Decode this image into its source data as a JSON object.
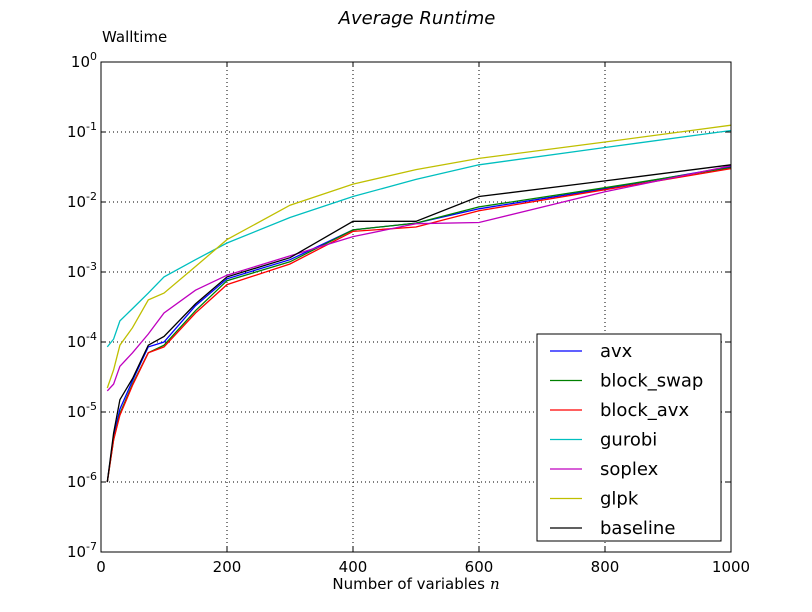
{
  "chart_data": {
    "type": "line",
    "title": "Average Runtime",
    "ylabel": "Walltime",
    "xlabel": "Number of variables",
    "xlabel_var": "n",
    "xlim": [
      0,
      1000
    ],
    "ylim": [
      1e-07,
      1
    ],
    "yscale": "log",
    "grid": true,
    "legend_position": "lower-right",
    "xticks": [
      {
        "value": 0,
        "label": "0"
      },
      {
        "value": 200,
        "label": "200"
      },
      {
        "value": 400,
        "label": "400"
      },
      {
        "value": 600,
        "label": "600"
      },
      {
        "value": 800,
        "label": "800"
      },
      {
        "value": 1000,
        "label": "1000"
      }
    ],
    "yticks": [
      {
        "value": 1e-07,
        "base": "10",
        "exp": "-7"
      },
      {
        "value": 1e-06,
        "base": "10",
        "exp": "-6"
      },
      {
        "value": 1e-05,
        "base": "10",
        "exp": "-5"
      },
      {
        "value": 0.0001,
        "base": "10",
        "exp": "-4"
      },
      {
        "value": 0.001,
        "base": "10",
        "exp": "-3"
      },
      {
        "value": 0.01,
        "base": "10",
        "exp": "-2"
      },
      {
        "value": 0.1,
        "base": "10",
        "exp": "-1"
      },
      {
        "value": 1,
        "base": "10",
        "exp": "0"
      }
    ],
    "series": [
      {
        "name": "avx",
        "color": "#0000ff",
        "x": [
          10,
          20,
          30,
          50,
          75,
          100,
          150,
          200,
          300,
          400,
          500,
          600,
          800,
          1000
        ],
        "y": [
          1e-06,
          4.5e-06,
          1.1e-05,
          2.8e-05,
          8.5e-05,
          0.0001,
          0.00033,
          0.0008,
          0.0015,
          0.004,
          0.005,
          0.008,
          0.0155,
          0.032
        ]
      },
      {
        "name": "block_swap",
        "color": "#008000",
        "x": [
          10,
          20,
          30,
          50,
          75,
          100,
          150,
          200,
          300,
          400,
          500,
          600,
          800,
          1000
        ],
        "y": [
          1e-06,
          4e-06,
          9.5e-06,
          2.5e-05,
          7e-05,
          9e-05,
          0.00028,
          0.00075,
          0.0014,
          0.004,
          0.005,
          0.0085,
          0.016,
          0.031
        ]
      },
      {
        "name": "block_avx",
        "color": "#ff0000",
        "x": [
          10,
          20,
          30,
          50,
          75,
          100,
          150,
          200,
          300,
          400,
          500,
          600,
          800,
          1000
        ],
        "y": [
          1e-06,
          4e-06,
          9e-06,
          2.4e-05,
          7e-05,
          8.5e-05,
          0.00026,
          0.00066,
          0.0013,
          0.0038,
          0.0044,
          0.0075,
          0.015,
          0.03
        ]
      },
      {
        "name": "gurobi",
        "color": "#00bfbf",
        "x": [
          10,
          20,
          30,
          50,
          75,
          100,
          150,
          200,
          300,
          400,
          500,
          600,
          800,
          1000
        ],
        "y": [
          8.5e-05,
          0.00011,
          0.0002,
          0.0003,
          0.0005,
          0.00085,
          0.0015,
          0.0026,
          0.006,
          0.012,
          0.021,
          0.034,
          0.06,
          0.105
        ]
      },
      {
        "name": "soplex",
        "color": "#bf00bf",
        "x": [
          10,
          20,
          30,
          50,
          75,
          100,
          150,
          200,
          300,
          400,
          500,
          600,
          800,
          1000
        ],
        "y": [
          2e-05,
          2.5e-05,
          4.5e-05,
          7e-05,
          0.00013,
          0.00026,
          0.00055,
          0.0009,
          0.0017,
          0.0032,
          0.0049,
          0.0051,
          0.014,
          0.033
        ]
      },
      {
        "name": "glpk",
        "color": "#bfbf00",
        "x": [
          10,
          20,
          30,
          50,
          75,
          100,
          150,
          200,
          300,
          400,
          500,
          600,
          800,
          1000
        ],
        "y": [
          2.2e-05,
          4e-05,
          9e-05,
          0.00016,
          0.0004,
          0.0005,
          0.0012,
          0.0029,
          0.009,
          0.018,
          0.029,
          0.042,
          0.072,
          0.125
        ]
      },
      {
        "name": "baseline",
        "color": "#000000",
        "x": [
          10,
          20,
          30,
          50,
          75,
          100,
          150,
          200,
          300,
          400,
          500,
          600,
          800,
          1000
        ],
        "y": [
          1e-06,
          5e-06,
          1.5e-05,
          3e-05,
          9e-05,
          0.00012,
          0.00035,
          0.00085,
          0.0016,
          0.0053,
          0.0053,
          0.012,
          0.02,
          0.034
        ]
      }
    ]
  }
}
